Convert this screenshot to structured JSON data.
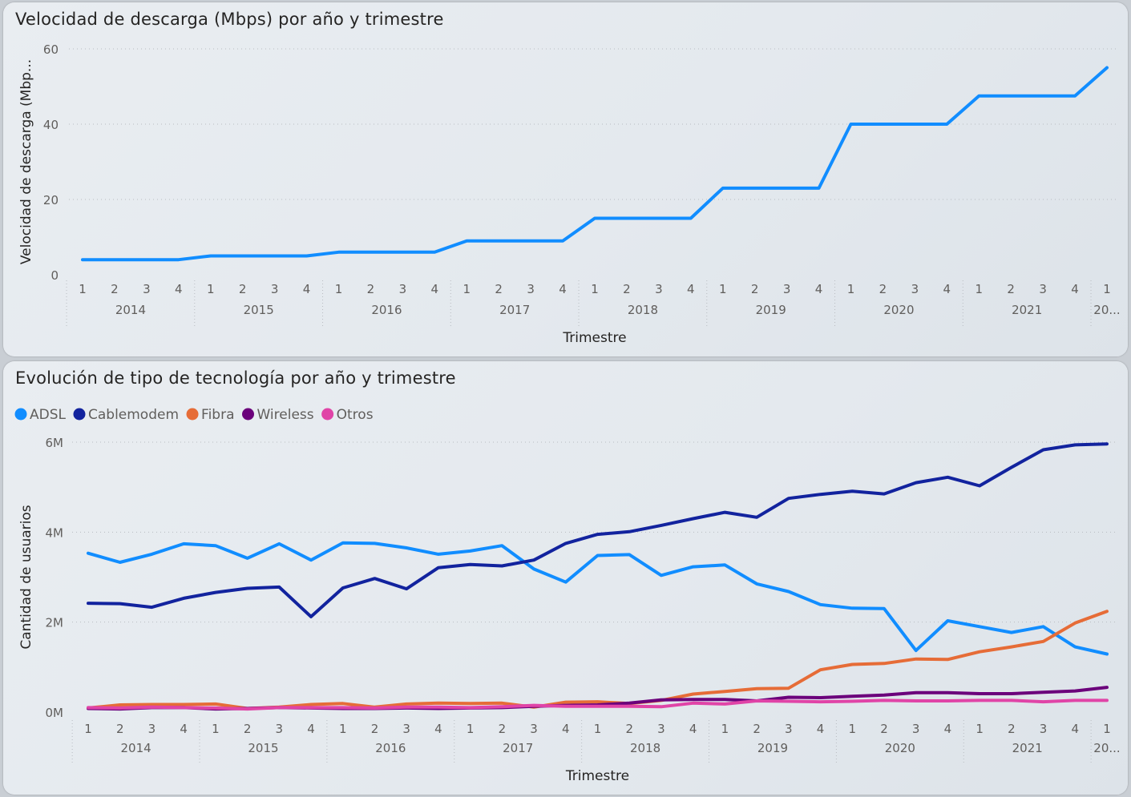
{
  "speed_panel": {
    "title": "Velocidad de descarga (Mbps) por año y trimestre"
  },
  "tech_panel": {
    "title": "Evolución de tipo de tecnología por año y trimestre"
  },
  "chart_data": [
    {
      "type": "line",
      "title": "Velocidad de descarga (Mbps) por año y trimestre",
      "xlabel": "Trimestre",
      "ylabel": "Velocidad de descarga (Mbp...",
      "quarters": [
        "1",
        "2",
        "3",
        "4",
        "1",
        "2",
        "3",
        "4",
        "1",
        "2",
        "3",
        "4",
        "1",
        "2",
        "3",
        "4",
        "1",
        "2",
        "3",
        "4",
        "1",
        "2",
        "3",
        "4",
        "1",
        "2",
        "3",
        "4",
        "1",
        "2",
        "3",
        "4",
        "1"
      ],
      "years": [
        "2014",
        "2015",
        "2016",
        "2017",
        "2018",
        "2019",
        "2020",
        "2021",
        "20..."
      ],
      "yticks": [
        "0",
        "20",
        "40",
        "60"
      ],
      "ylim": [
        0,
        60
      ],
      "grid": true,
      "series": [
        {
          "name": "Velocidad de descarga (Mbps)",
          "color": "#118dff",
          "values": [
            4,
            4,
            4,
            4,
            5,
            5,
            5,
            5,
            6,
            6,
            6,
            6,
            9,
            9,
            9,
            9,
            15,
            15,
            15,
            15,
            23,
            23,
            23,
            23,
            40,
            40,
            40,
            40,
            47.5,
            47.5,
            47.5,
            47.5,
            55
          ]
        }
      ]
    },
    {
      "type": "line",
      "title": "Evolución de tipo de tecnología por año y trimestre",
      "xlabel": "Trimestre",
      "ylabel": "Cantidad de usuarios",
      "quarters": [
        "1",
        "2",
        "3",
        "4",
        "1",
        "2",
        "3",
        "4",
        "1",
        "2",
        "3",
        "4",
        "1",
        "2",
        "3",
        "4",
        "1",
        "2",
        "3",
        "4",
        "1",
        "2",
        "3",
        "4",
        "1",
        "2",
        "3",
        "4",
        "1",
        "2",
        "3",
        "4",
        "1"
      ],
      "years": [
        "2014",
        "2015",
        "2016",
        "2017",
        "2018",
        "2019",
        "2020",
        "2021",
        "20..."
      ],
      "yticks": [
        "0M",
        "2M",
        "4M",
        "6M"
      ],
      "ylim": [
        0,
        6000000
      ],
      "legend_position": "top-left",
      "grid": true,
      "series": [
        {
          "name": "ADSL",
          "color": "#118dff",
          "values": [
            3530000,
            3330000,
            3510000,
            3740000,
            3700000,
            3420000,
            3740000,
            3380000,
            3760000,
            3750000,
            3650000,
            3510000,
            3580000,
            3700000,
            3180000,
            2890000,
            3480000,
            3500000,
            3040000,
            3230000,
            3270000,
            2850000,
            2680000,
            2390000,
            2310000,
            2300000,
            1370000,
            2030000,
            1900000,
            1770000,
            1900000,
            1450000,
            1290000
          ]
        },
        {
          "name": "Cablemodem",
          "color": "#12239e",
          "values": [
            2420000,
            2410000,
            2330000,
            2530000,
            2660000,
            2750000,
            2780000,
            2120000,
            2760000,
            2970000,
            2740000,
            3210000,
            3280000,
            3250000,
            3380000,
            3750000,
            3950000,
            4010000,
            4150000,
            4300000,
            4440000,
            4330000,
            4750000,
            4840000,
            4910000,
            4850000,
            5100000,
            5220000,
            5030000,
            5440000,
            5830000,
            5940000,
            5960000
          ]
        },
        {
          "name": "Fibra",
          "color": "#e66c37",
          "values": [
            90000,
            160000,
            170000,
            170000,
            180000,
            80000,
            110000,
            170000,
            190000,
            110000,
            180000,
            200000,
            190000,
            200000,
            110000,
            220000,
            230000,
            190000,
            260000,
            400000,
            460000,
            520000,
            530000,
            940000,
            1060000,
            1080000,
            1180000,
            1170000,
            1340000,
            1450000,
            1570000,
            1980000,
            2240000
          ]
        },
        {
          "name": "Wireless",
          "color": "#6b007b",
          "values": [
            80000,
            70000,
            100000,
            100000,
            70000,
            80000,
            100000,
            90000,
            80000,
            80000,
            90000,
            80000,
            90000,
            100000,
            130000,
            150000,
            160000,
            200000,
            270000,
            280000,
            280000,
            250000,
            330000,
            320000,
            350000,
            380000,
            430000,
            430000,
            410000,
            410000,
            440000,
            470000,
            550000
          ]
        },
        {
          "name": "Otros",
          "color": "#e044a7",
          "values": [
            100000,
            90000,
            110000,
            100000,
            90000,
            70000,
            100000,
            100000,
            100000,
            90000,
            110000,
            110000,
            100000,
            120000,
            150000,
            130000,
            130000,
            130000,
            120000,
            200000,
            180000,
            250000,
            240000,
            230000,
            240000,
            260000,
            250000,
            250000,
            260000,
            260000,
            230000,
            260000,
            260000
          ]
        }
      ]
    }
  ]
}
